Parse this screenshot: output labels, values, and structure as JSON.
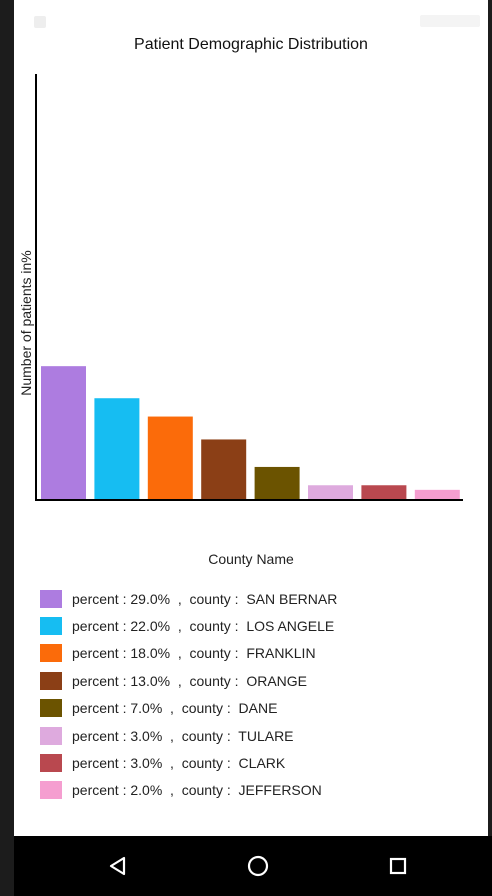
{
  "chart_data": {
    "type": "bar",
    "title": "Patient Demographic Distribution",
    "xlabel": "County Name",
    "ylabel": "Number of patients in%",
    "ylim": [
      0,
      93
    ],
    "grid": false,
    "legend_position": "bottom",
    "categories": [
      "SAN BERNAR",
      "LOS ANGELE",
      "FRANKLIN",
      "ORANGE",
      "DANE",
      "TULARE",
      "CLARK",
      "JEFFERSON"
    ],
    "values": [
      29.0,
      22.0,
      18.0,
      13.0,
      7.0,
      3.0,
      3.0,
      2.0
    ],
    "colors": [
      "#ad7ce0",
      "#16bdf2",
      "#fb6b0a",
      "#8b3f16",
      "#6b5300",
      "#deaade",
      "#b9484f",
      "#f59ed0"
    ]
  },
  "legend": {
    "items": [
      {
        "percent": "percent : 29.0%  ,",
        "county": "county :  SAN BERNAR"
      },
      {
        "percent": "percent : 22.0%  ,",
        "county": "county :  LOS ANGELE"
      },
      {
        "percent": "percent : 18.0%  ,",
        "county": "county :  FRANKLIN"
      },
      {
        "percent": "percent : 13.0%  ,",
        "county": "county :  ORANGE"
      },
      {
        "percent": "percent : 7.0%  ,",
        "county": "county :  DANE"
      },
      {
        "percent": "percent : 3.0%  ,",
        "county": "county :  TULARE"
      },
      {
        "percent": "percent : 3.0%  ,",
        "county": "county :  CLARK"
      },
      {
        "percent": "percent : 2.0%  ,",
        "county": "county :  JEFFERSON"
      }
    ]
  },
  "nav": {
    "back_icon": "back-triangle-icon",
    "home_icon": "home-circle-icon",
    "recents_icon": "recents-square-icon"
  }
}
